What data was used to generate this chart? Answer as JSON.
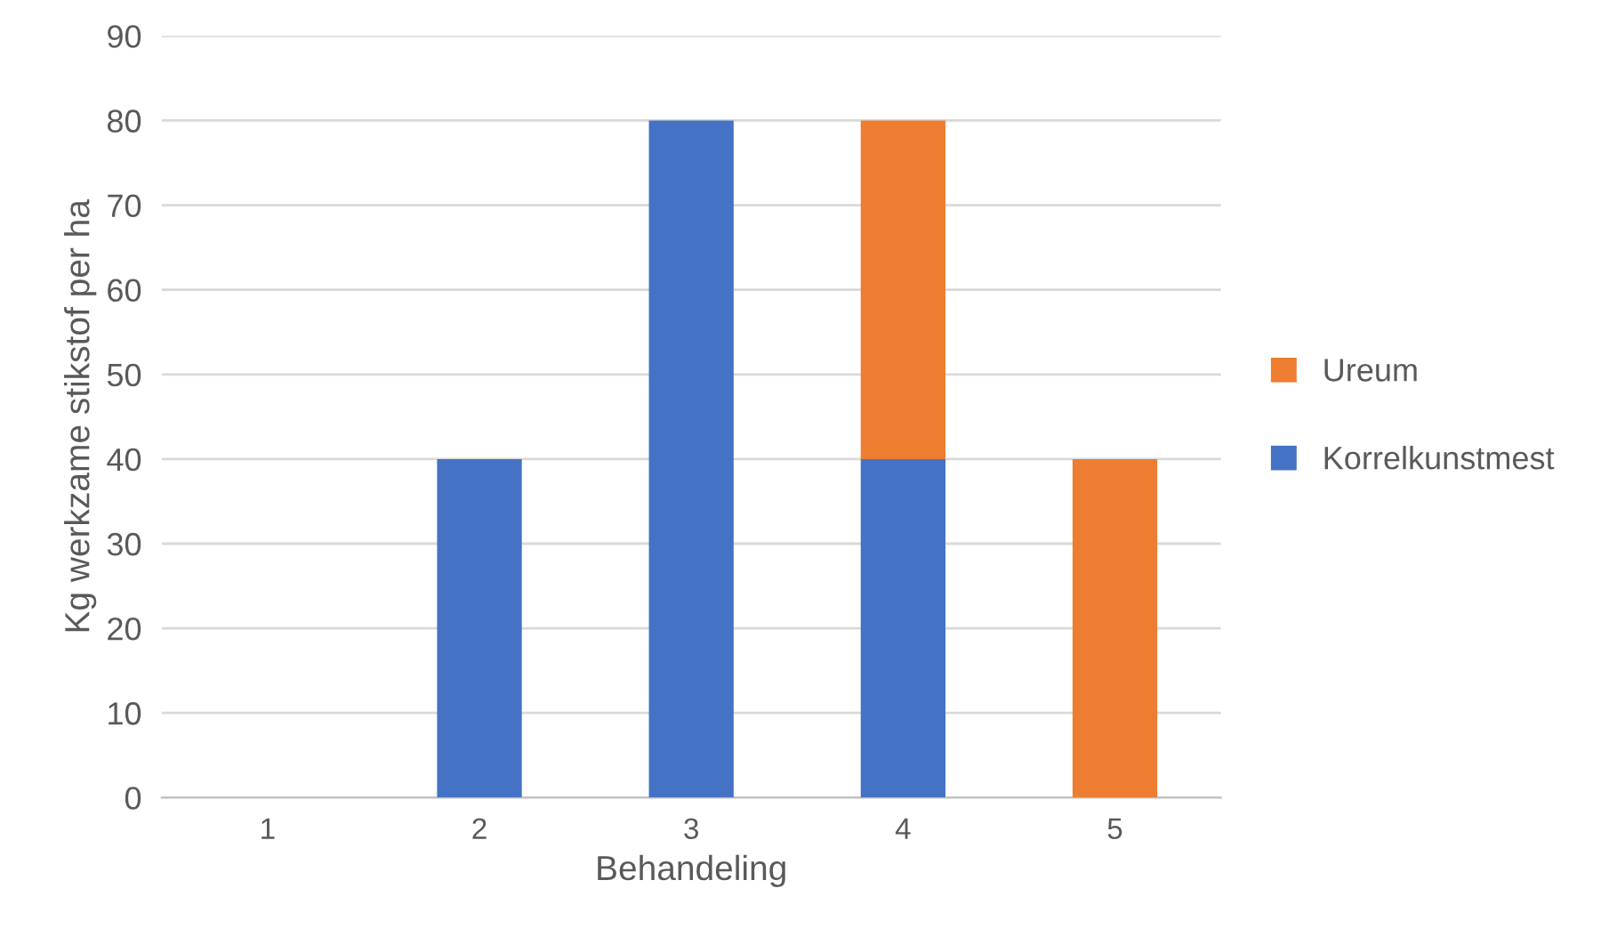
{
  "chart_data": {
    "type": "bar",
    "stacked": true,
    "xlabel": "Behandeling",
    "ylabel": "Kg werkzame stikstof per ha",
    "categories": [
      "1",
      "2",
      "3",
      "4",
      "5"
    ],
    "series": [
      {
        "name": "Korrelkunstmest",
        "color": "#4472c4",
        "values": [
          0,
          40,
          80,
          40,
          0
        ]
      },
      {
        "name": "Ureum",
        "color": "#ed7d31",
        "values": [
          0,
          0,
          0,
          40,
          40
        ]
      }
    ],
    "ylim": [
      0,
      90
    ],
    "yticks": [
      0,
      10,
      20,
      30,
      40,
      50,
      60,
      70,
      80,
      90
    ],
    "grid": "y",
    "legend": "right"
  }
}
